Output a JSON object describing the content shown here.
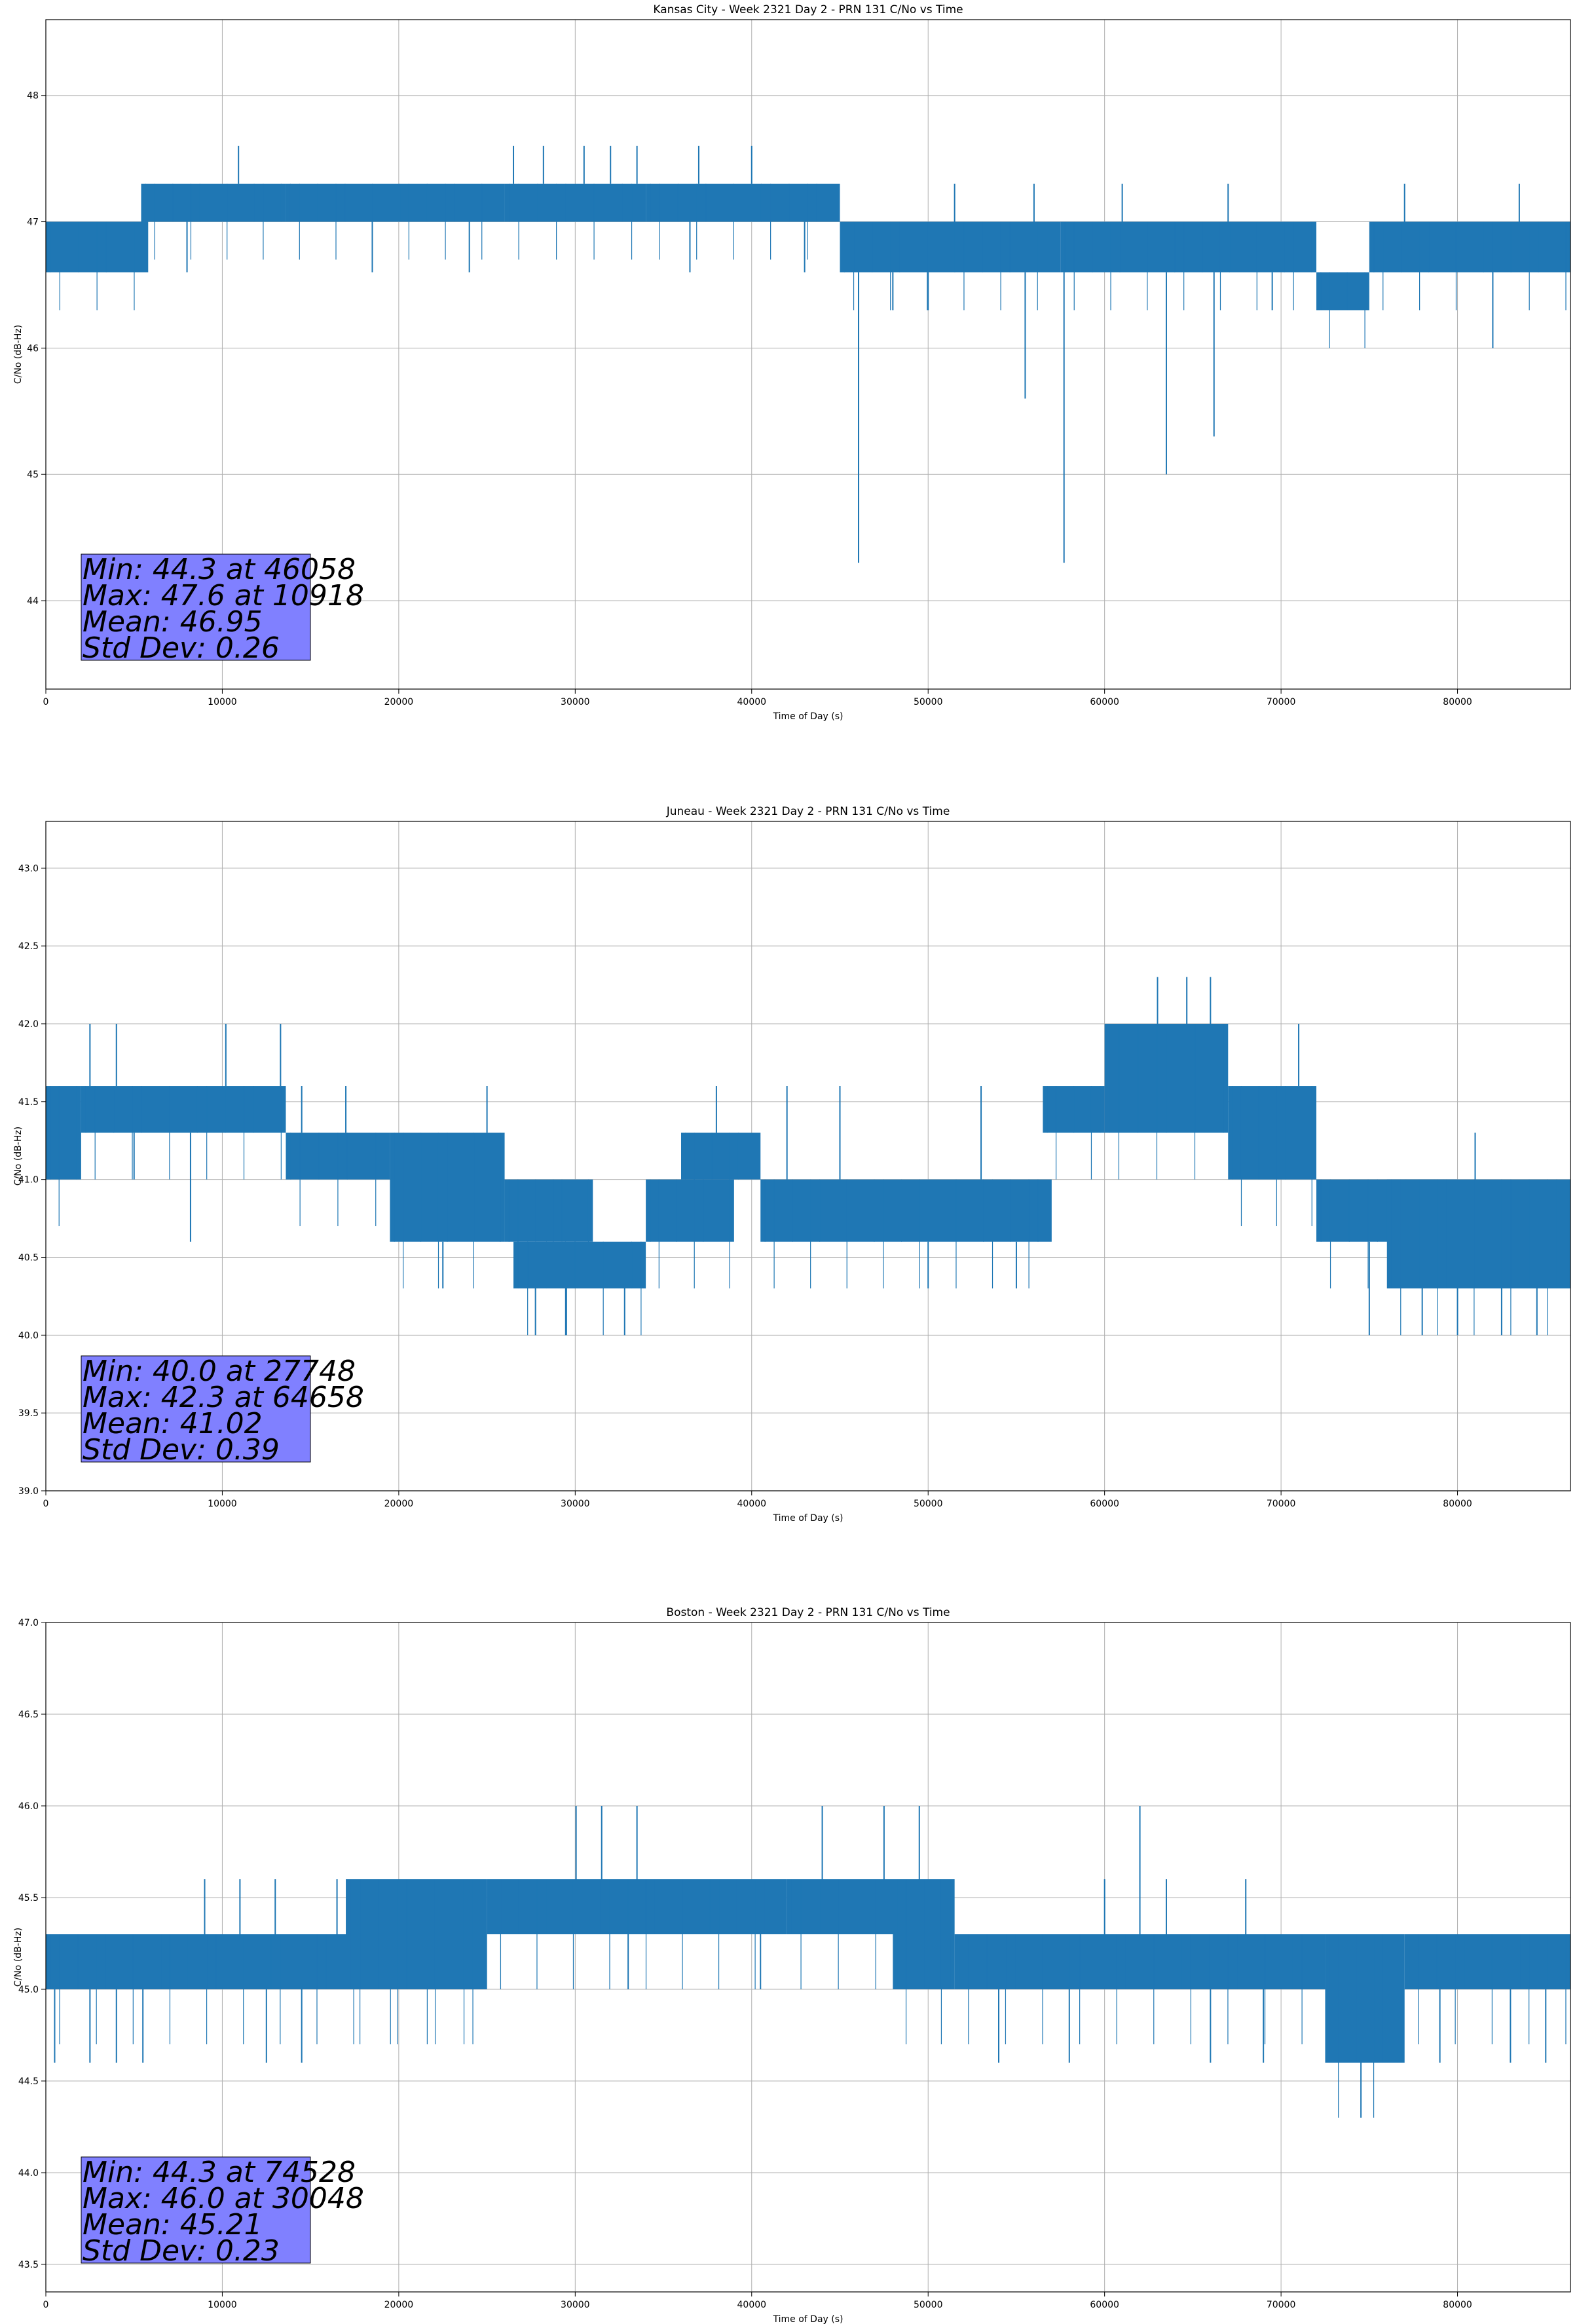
{
  "colors": {
    "series": "#1f77b4",
    "grid": "#b0b0b0",
    "stats_box": "#8080ff"
  },
  "chart_data": [
    {
      "type": "line",
      "title": "Kansas City - Week 2321 Day 2 - PRN 131 C/No vs Time",
      "xlabel": "Time of Day (s)",
      "ylabel": "C/No (dB-Hz)",
      "xlim": [
        0,
        86400
      ],
      "ylim": [
        43.3,
        48.6
      ],
      "xticks": [
        0,
        10000,
        20000,
        30000,
        40000,
        50000,
        60000,
        70000,
        80000
      ],
      "yticks": [
        44,
        45,
        46,
        47,
        48
      ],
      "ytick_labels": [
        "44",
        "45",
        "46",
        "47",
        "48"
      ],
      "grid": true,
      "band_segments": [
        {
          "x": [
            0,
            5800
          ],
          "low": 46.6,
          "high": 47.0
        },
        {
          "x": [
            5400,
            13600
          ],
          "low": 47.0,
          "high": 47.3
        },
        {
          "x": [
            13600,
            26000
          ],
          "low": 47.0,
          "high": 47.3
        },
        {
          "x": [
            26000,
            34000
          ],
          "low": 47.0,
          "high": 47.3
        },
        {
          "x": [
            34000,
            45000
          ],
          "low": 47.0,
          "high": 47.3
        },
        {
          "x": [
            45000,
            57500
          ],
          "low": 46.6,
          "high": 47.0
        },
        {
          "x": [
            57500,
            72000
          ],
          "low": 46.6,
          "high": 47.0
        },
        {
          "x": [
            72000,
            75000
          ],
          "low": 46.3,
          "high": 46.6
        },
        {
          "x": [
            75000,
            86400
          ],
          "low": 46.6,
          "high": 47.0
        }
      ],
      "spikes": [
        {
          "x": 10918,
          "y": 47.6
        },
        {
          "x": 26500,
          "y": 47.6
        },
        {
          "x": 28200,
          "y": 47.6
        },
        {
          "x": 30500,
          "y": 47.6
        },
        {
          "x": 32000,
          "y": 47.6
        },
        {
          "x": 33500,
          "y": 47.6
        },
        {
          "x": 37000,
          "y": 47.6
        },
        {
          "x": 40000,
          "y": 47.6
        },
        {
          "x": 46058,
          "y": 44.3
        },
        {
          "x": 48000,
          "y": 46.3
        },
        {
          "x": 50000,
          "y": 46.3
        },
        {
          "x": 55500,
          "y": 45.6
        },
        {
          "x": 57700,
          "y": 44.3
        },
        {
          "x": 63500,
          "y": 45.0
        },
        {
          "x": 66200,
          "y": 45.3
        },
        {
          "x": 69500,
          "y": 46.3
        },
        {
          "x": 82000,
          "y": 46.0
        },
        {
          "x": 8000,
          "y": 46.6
        },
        {
          "x": 18500,
          "y": 46.6
        },
        {
          "x": 24000,
          "y": 46.6
        },
        {
          "x": 36500,
          "y": 46.6
        },
        {
          "x": 43000,
          "y": 46.6
        },
        {
          "x": 51500,
          "y": 47.3
        },
        {
          "x": 56000,
          "y": 47.3
        },
        {
          "x": 61000,
          "y": 47.3
        },
        {
          "x": 67000,
          "y": 47.3
        },
        {
          "x": 77000,
          "y": 47.3
        },
        {
          "x": 83500,
          "y": 47.3
        }
      ],
      "stats": [
        "Min: 44.3 at 46058",
        "Max: 47.6 at 10918",
        "Mean: 46.95",
        "Std Dev: 0.26"
      ]
    },
    {
      "type": "line",
      "title": "Juneau - Week 2321 Day 2 - PRN 131 C/No vs Time",
      "xlabel": "Time of Day (s)",
      "ylabel": "C/No (dB-Hz)",
      "xlim": [
        0,
        86400
      ],
      "ylim": [
        39.0,
        43.3
      ],
      "xticks": [
        0,
        10000,
        20000,
        30000,
        40000,
        50000,
        60000,
        70000,
        80000
      ],
      "yticks": [
        39.0,
        39.5,
        40.0,
        40.5,
        41.0,
        41.5,
        42.0,
        42.5,
        43.0
      ],
      "ytick_labels": [
        "39.0",
        "39.5",
        "40.0",
        "40.5",
        "41.0",
        "41.5",
        "42.0",
        "42.5",
        "43.0"
      ],
      "grid": true,
      "band_segments": [
        {
          "x": [
            0,
            2000
          ],
          "low": 41.0,
          "high": 41.6
        },
        {
          "x": [
            2000,
            13600
          ],
          "low": 41.3,
          "high": 41.6
        },
        {
          "x": [
            13600,
            19500
          ],
          "low": 41.0,
          "high": 41.3
        },
        {
          "x": [
            19500,
            26000
          ],
          "low": 40.6,
          "high": 41.3
        },
        {
          "x": [
            26000,
            31000
          ],
          "low": 40.6,
          "high": 41.0
        },
        {
          "x": [
            26500,
            34000
          ],
          "low": 40.3,
          "high": 40.6
        },
        {
          "x": [
            34000,
            39000
          ],
          "low": 40.6,
          "high": 41.0
        },
        {
          "x": [
            36000,
            40500
          ],
          "low": 41.0,
          "high": 41.3
        },
        {
          "x": [
            40500,
            57000
          ],
          "low": 40.6,
          "high": 41.0
        },
        {
          "x": [
            56500,
            60000
          ],
          "low": 41.3,
          "high": 41.6
        },
        {
          "x": [
            60000,
            67000
          ],
          "low": 41.3,
          "high": 42.0
        },
        {
          "x": [
            67000,
            72000
          ],
          "low": 41.0,
          "high": 41.6
        },
        {
          "x": [
            72000,
            80000
          ],
          "low": 40.6,
          "high": 41.0
        },
        {
          "x": [
            76000,
            86400
          ],
          "low": 40.3,
          "high": 41.0
        }
      ],
      "spikes": [
        {
          "x": 27748,
          "y": 40.0
        },
        {
          "x": 29500,
          "y": 40.0
        },
        {
          "x": 32800,
          "y": 40.0
        },
        {
          "x": 64658,
          "y": 42.3
        },
        {
          "x": 63000,
          "y": 42.3
        },
        {
          "x": 66000,
          "y": 42.3
        },
        {
          "x": 2500,
          "y": 42.0
        },
        {
          "x": 4000,
          "y": 42.0
        },
        {
          "x": 10200,
          "y": 42.0
        },
        {
          "x": 13300,
          "y": 42.0
        },
        {
          "x": 8200,
          "y": 40.6
        },
        {
          "x": 5000,
          "y": 41.0
        },
        {
          "x": 14500,
          "y": 41.6
        },
        {
          "x": 17000,
          "y": 41.6
        },
        {
          "x": 22500,
          "y": 40.3
        },
        {
          "x": 25000,
          "y": 41.6
        },
        {
          "x": 38000,
          "y": 41.6
        },
        {
          "x": 42000,
          "y": 41.6
        },
        {
          "x": 45000,
          "y": 41.6
        },
        {
          "x": 50000,
          "y": 40.3
        },
        {
          "x": 53000,
          "y": 41.6
        },
        {
          "x": 55000,
          "y": 40.3
        },
        {
          "x": 71000,
          "y": 42.0
        },
        {
          "x": 75000,
          "y": 40.0
        },
        {
          "x": 78000,
          "y": 40.0
        },
        {
          "x": 80000,
          "y": 40.0
        },
        {
          "x": 82500,
          "y": 40.0
        },
        {
          "x": 84500,
          "y": 40.0
        },
        {
          "x": 81000,
          "y": 41.3
        },
        {
          "x": 85500,
          "y": 40.3
        }
      ],
      "stats": [
        "Min: 40.0 at 27748",
        "Max: 42.3 at 64658",
        "Mean: 41.02",
        "Std Dev: 0.39"
      ]
    },
    {
      "type": "line",
      "title": "Boston - Week 2321 Day 2 - PRN 131 C/No vs Time",
      "xlabel": "Time of Day (s)",
      "ylabel": "C/No (dB-Hz)",
      "xlim": [
        0,
        86400
      ],
      "ylim": [
        43.35,
        47.0
      ],
      "xticks": [
        0,
        10000,
        20000,
        30000,
        40000,
        50000,
        60000,
        70000,
        80000
      ],
      "yticks": [
        43.5,
        44.0,
        44.5,
        45.0,
        45.5,
        46.0,
        46.5,
        47.0
      ],
      "ytick_labels": [
        "43.5",
        "44.0",
        "44.5",
        "45.0",
        "45.5",
        "46.0",
        "46.5",
        "47.0"
      ],
      "grid": true,
      "band_segments": [
        {
          "x": [
            0,
            25000
          ],
          "low": 45.0,
          "high": 45.3
        },
        {
          "x": [
            17000,
            25000
          ],
          "low": 45.0,
          "high": 45.6
        },
        {
          "x": [
            25000,
            42000
          ],
          "low": 45.3,
          "high": 45.6
        },
        {
          "x": [
            42000,
            51000
          ],
          "low": 45.3,
          "high": 45.6
        },
        {
          "x": [
            48000,
            51500
          ],
          "low": 45.0,
          "high": 45.6
        },
        {
          "x": [
            51500,
            72500
          ],
          "low": 45.0,
          "high": 45.3
        },
        {
          "x": [
            72500,
            77000
          ],
          "low": 44.6,
          "high": 45.3
        },
        {
          "x": [
            77000,
            86400
          ],
          "low": 45.0,
          "high": 45.3
        }
      ],
      "spikes": [
        {
          "x": 30048,
          "y": 46.0
        },
        {
          "x": 31500,
          "y": 46.0
        },
        {
          "x": 33500,
          "y": 46.0
        },
        {
          "x": 44000,
          "y": 46.0
        },
        {
          "x": 47500,
          "y": 46.0
        },
        {
          "x": 49500,
          "y": 46.0
        },
        {
          "x": 62000,
          "y": 46.0
        },
        {
          "x": 74528,
          "y": 44.3
        },
        {
          "x": 500,
          "y": 44.6
        },
        {
          "x": 2500,
          "y": 44.6
        },
        {
          "x": 4000,
          "y": 44.6
        },
        {
          "x": 5500,
          "y": 44.6
        },
        {
          "x": 12500,
          "y": 44.6
        },
        {
          "x": 14500,
          "y": 44.6
        },
        {
          "x": 9000,
          "y": 45.6
        },
        {
          "x": 11000,
          "y": 45.6
        },
        {
          "x": 13000,
          "y": 45.6
        },
        {
          "x": 16500,
          "y": 45.6
        },
        {
          "x": 33000,
          "y": 45.0
        },
        {
          "x": 40500,
          "y": 45.0
        },
        {
          "x": 54000,
          "y": 44.6
        },
        {
          "x": 58000,
          "y": 44.6
        },
        {
          "x": 60000,
          "y": 45.6
        },
        {
          "x": 63500,
          "y": 45.6
        },
        {
          "x": 66000,
          "y": 44.6
        },
        {
          "x": 69000,
          "y": 44.6
        },
        {
          "x": 68000,
          "y": 45.6
        },
        {
          "x": 79000,
          "y": 44.6
        },
        {
          "x": 83000,
          "y": 44.6
        },
        {
          "x": 85000,
          "y": 44.6
        }
      ],
      "stats": [
        "Min: 44.3 at 74528",
        "Max: 46.0 at 30048",
        "Mean: 45.21",
        "Std Dev: 0.23"
      ]
    }
  ]
}
